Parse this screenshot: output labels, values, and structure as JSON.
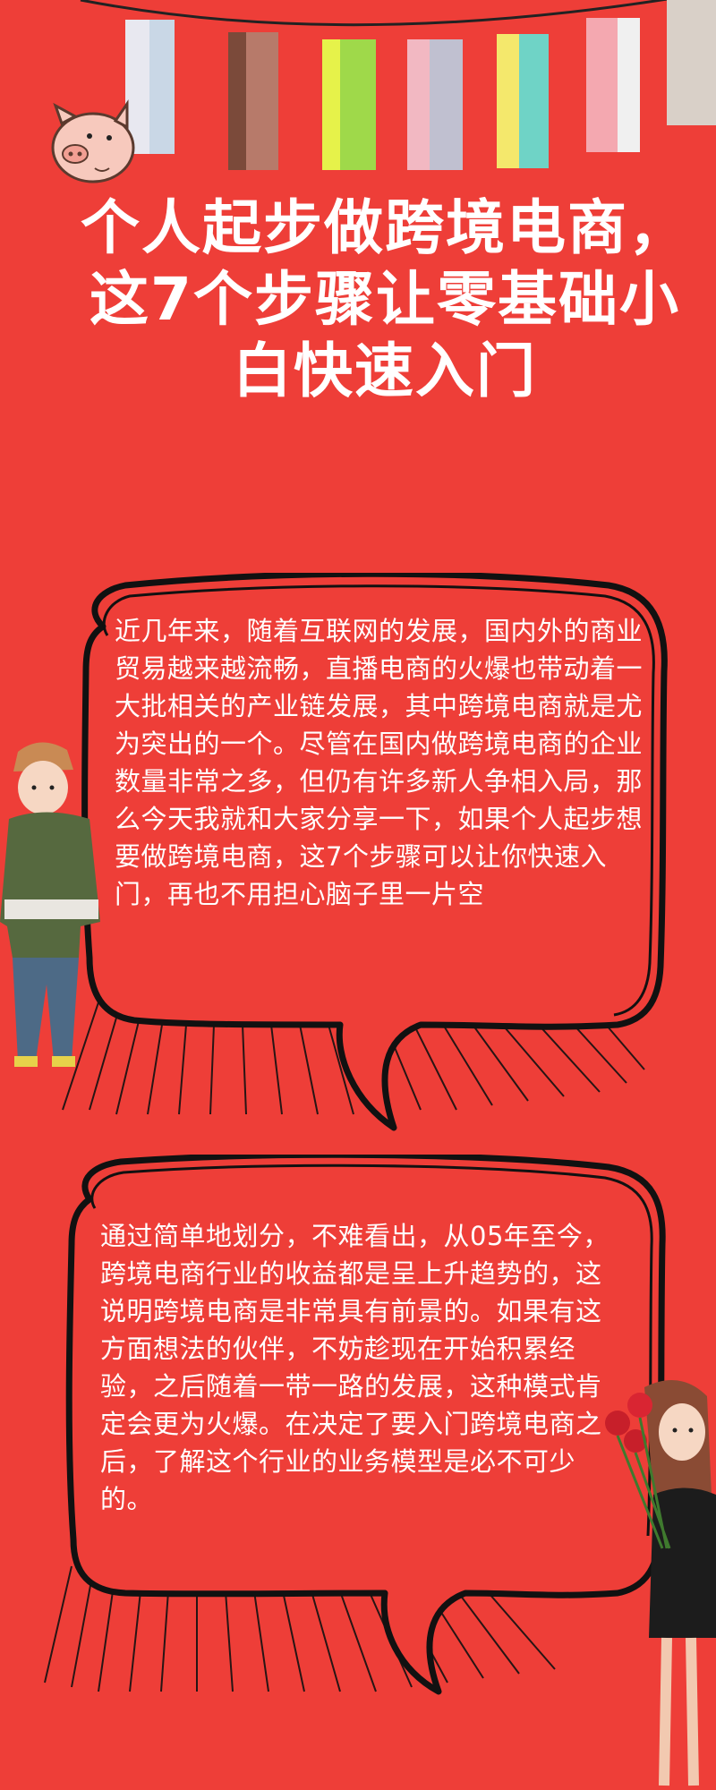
{
  "title": "个人起步做跨境电商，这7个步骤让零基础小白快速入门",
  "paragraphs": [
    "近几年来，随着互联网的发展，国内外的商业贸易越来越流畅，直播电商的火爆也带动着一大批相关的产业链发展，其中跨境电商就是尤为突出的一个。尽管在国内做跨境电商的企业数量非常之多，但仍有许多新人争相入局，那么今天我就和大家分享一下，如果个人起步想要做跨境电商，这7个步骤可以让你快速入门，再也不用担心脑子里一片空",
    "通过简单地划分，不难看出，从05年至今，跨境电商行业的收益都是呈上升趋势的，这说明跨境电商是非常具有前景的。如果有这方面想法的伙伴，不妨趁现在开始积累经验，之后随着一带一路的发展，这种模式肯定会更为火爆。在决定了要入门跨境电商之后，了解这个行业的业务模型是必不可少的。"
  ],
  "colors": {
    "background": "#ee3e38",
    "text": "#ffffff",
    "outline": "#111111"
  },
  "illustrations": [
    "bunting-flags",
    "pig-icon",
    "boy-figure",
    "girl-with-roses-figure"
  ]
}
